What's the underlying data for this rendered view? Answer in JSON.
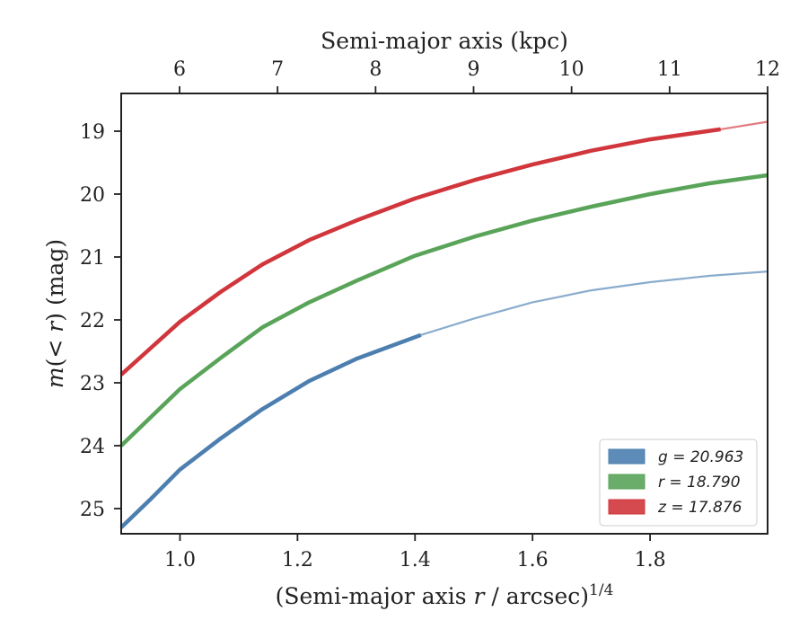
{
  "chart_data": {
    "type": "line",
    "xlabel_bottom": "(Semi-major axis r / arcsec)1/4",
    "xlabel_top": "Semi-major axis (kpc)",
    "ylabel": "m(< r) (mag)",
    "xlim": [
      0.9,
      2.0
    ],
    "ylim": [
      25.4,
      18.4
    ],
    "y_inverted": true,
    "x_ticks": [
      1.0,
      1.2,
      1.4,
      1.6,
      1.8
    ],
    "x_tick_labels": [
      "1.0",
      "1.2",
      "1.4",
      "1.6",
      "1.8"
    ],
    "y_ticks": [
      19,
      20,
      21,
      22,
      23,
      24,
      25
    ],
    "y_tick_labels": [
      "19",
      "20",
      "21",
      "22",
      "23",
      "24",
      "25"
    ],
    "top_ticks_kpc": [
      6,
      7,
      8,
      9,
      10,
      11,
      12
    ],
    "top_tick_labels": [
      "6",
      "7",
      "8",
      "9",
      "10",
      "11",
      "12"
    ],
    "grid": false,
    "legend_position": "lower-right",
    "legend": [
      {
        "label": "g = 20.963",
        "color": "#4c7fb0"
      },
      {
        "label": "r = 18.790",
        "color": "#5aa45a"
      },
      {
        "label": "z = 17.876",
        "color": "#d0363b"
      }
    ],
    "series": [
      {
        "band": "g",
        "color": "#4c7fb0",
        "x": [
          0.9,
          0.95,
          1.0,
          1.07,
          1.14,
          1.22,
          1.3,
          1.41,
          1.5,
          1.6,
          1.7,
          1.8,
          1.9,
          2.0
        ],
        "y": [
          25.3,
          24.85,
          24.38,
          23.88,
          23.42,
          22.97,
          22.62,
          22.24,
          21.98,
          21.72,
          21.53,
          21.4,
          21.3,
          21.23
        ],
        "thick_until_x": 1.41
      },
      {
        "band": "r",
        "color": "#5aa45a",
        "x": [
          0.9,
          0.95,
          1.0,
          1.07,
          1.14,
          1.22,
          1.3,
          1.4,
          1.5,
          1.6,
          1.7,
          1.8,
          1.9,
          2.0
        ],
        "y": [
          24.0,
          23.55,
          23.1,
          22.6,
          22.12,
          21.72,
          21.38,
          20.98,
          20.68,
          20.42,
          20.2,
          20.0,
          19.83,
          19.7
        ],
        "thick_until_x": 2.0
      },
      {
        "band": "z",
        "color": "#d0363b",
        "x": [
          0.9,
          0.95,
          1.0,
          1.07,
          1.14,
          1.22,
          1.3,
          1.4,
          1.5,
          1.6,
          1.7,
          1.8,
          1.92,
          2.0
        ],
        "y": [
          22.87,
          22.45,
          22.03,
          21.55,
          21.12,
          20.73,
          20.42,
          20.07,
          19.78,
          19.53,
          19.31,
          19.13,
          18.97,
          18.85
        ],
        "thick_until_x": 1.92
      }
    ]
  }
}
